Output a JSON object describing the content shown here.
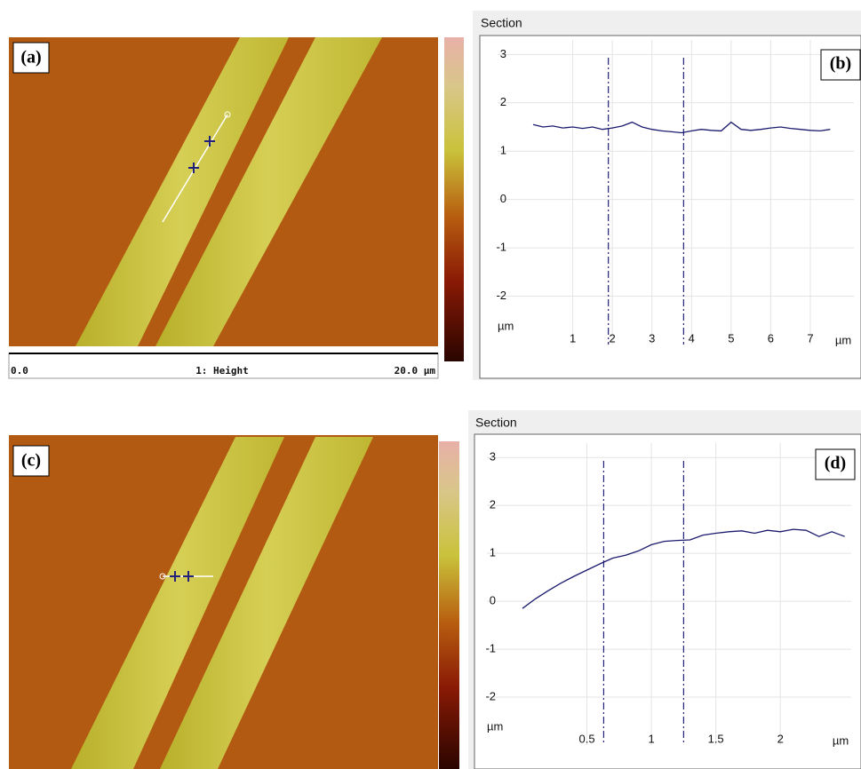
{
  "images": [
    {
      "label": "(a)",
      "scale_start": "0.0",
      "channel": "1: Height",
      "scale_end": "20.0 µm"
    },
    {
      "label": "(c)"
    }
  ],
  "chart_data": [
    {
      "type": "line",
      "title": "Section",
      "label": "(b)",
      "xlabel": "µm",
      "ylabel": "µm",
      "x": [
        0,
        0.25,
        0.5,
        0.75,
        1,
        1.25,
        1.5,
        1.75,
        2,
        2.25,
        2.5,
        2.75,
        3,
        3.25,
        3.5,
        3.75,
        4,
        4.25,
        4.5,
        4.75,
        5,
        5.25,
        5.5,
        5.75,
        6,
        6.25,
        6.5,
        6.75,
        7,
        7.25,
        7.5
      ],
      "series": [
        {
          "color": "#1a1a6e",
          "values": [
            1.55,
            1.5,
            1.52,
            1.48,
            1.5,
            1.47,
            1.5,
            1.45,
            1.48,
            1.52,
            1.6,
            1.5,
            1.45,
            1.42,
            1.4,
            1.38,
            1.42,
            1.45,
            1.43,
            1.42,
            1.6,
            1.45,
            1.43,
            1.45,
            1.48,
            1.5,
            1.47,
            1.45,
            1.43,
            1.42,
            1.45
          ]
        }
      ],
      "cursors": [
        1.9,
        3.8
      ],
      "xlim": [
        0,
        8.1
      ],
      "ylim": [
        -3,
        3.3
      ],
      "xticks": [
        1,
        2,
        3,
        4,
        5,
        6,
        7
      ],
      "yticks": [
        3,
        2,
        1,
        0,
        -1,
        -2
      ],
      "grid": true
    },
    {
      "type": "line",
      "title": "Section",
      "label": "(d)",
      "xlabel": "µm",
      "ylabel": "µm",
      "x": [
        0,
        0.1,
        0.2,
        0.3,
        0.4,
        0.5,
        0.6,
        0.7,
        0.8,
        0.9,
        1,
        1.1,
        1.2,
        1.3,
        1.4,
        1.5,
        1.6,
        1.7,
        1.8,
        1.9,
        2,
        2.1,
        2.2,
        2.3,
        2.4,
        2.5
      ],
      "series": [
        {
          "color": "#1a1a6e",
          "values": [
            -0.15,
            0.05,
            0.22,
            0.38,
            0.52,
            0.65,
            0.78,
            0.9,
            0.96,
            1.05,
            1.18,
            1.25,
            1.27,
            1.28,
            1.38,
            1.42,
            1.45,
            1.47,
            1.42,
            1.48,
            1.45,
            1.5,
            1.48,
            1.35,
            1.45,
            1.35
          ]
        }
      ],
      "cursors": [
        0.63,
        1.25
      ],
      "xlim": [
        0,
        2.55
      ],
      "ylim": [
        -3,
        3.3
      ],
      "xticks": [
        0.5,
        1,
        1.5,
        2
      ],
      "yticks": [
        3,
        2,
        1,
        0,
        -1,
        -2
      ],
      "grid": true
    }
  ]
}
